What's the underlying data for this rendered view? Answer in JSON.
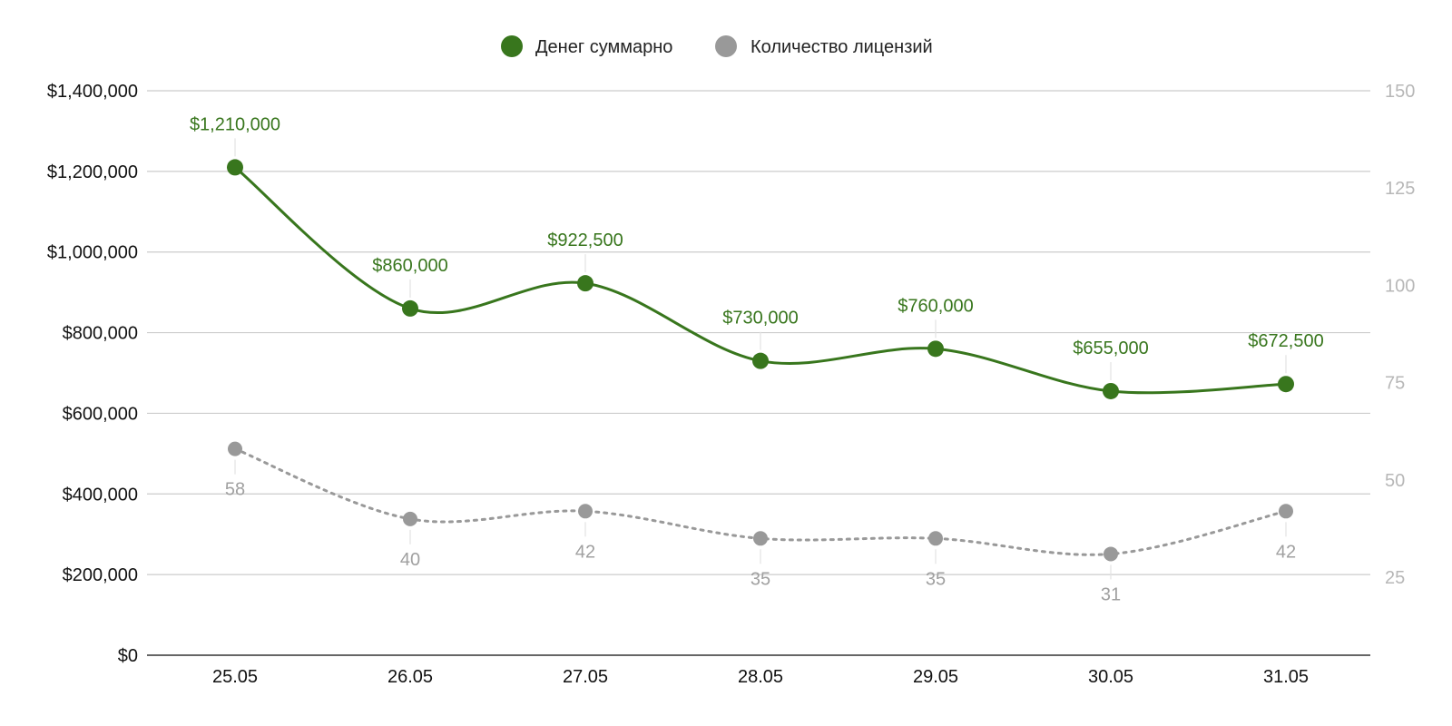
{
  "chart_data": {
    "type": "line",
    "categories": [
      "25.05",
      "26.05",
      "27.05",
      "28.05",
      "29.05",
      "30.05",
      "31.05"
    ],
    "series": [
      {
        "name": "Денег суммарно",
        "axis": "left",
        "color": "#38761d",
        "line_style": "solid",
        "values": [
          1210000,
          860000,
          922500,
          730000,
          760000,
          655000,
          672500
        ],
        "data_labels": [
          "$1,210,000",
          "$860,000",
          "$922,500",
          "$730,000",
          "$760,000",
          "$655,000",
          "$672,500"
        ],
        "label_position": "above"
      },
      {
        "name": "Количество лицензий",
        "axis": "right",
        "color": "#999999",
        "line_style": "dotted",
        "values": [
          58,
          40,
          42,
          35,
          35,
          31,
          42
        ],
        "data_labels": [
          "58",
          "40",
          "42",
          "35",
          "35",
          "31",
          "42"
        ],
        "label_position": "below"
      }
    ],
    "y_left": {
      "min": 0,
      "max": 1400000,
      "ticks": [
        0,
        200000,
        400000,
        600000,
        800000,
        1000000,
        1200000,
        1400000
      ],
      "tick_labels": [
        "$0",
        "$200,000",
        "$400,000",
        "$600,000",
        "$800,000",
        "$1,000,000",
        "$1,200,000",
        "$1,400,000"
      ]
    },
    "y_right": {
      "min": 5,
      "max": 150,
      "ticks": [
        25,
        50,
        75,
        100,
        125,
        150
      ],
      "tick_labels": [
        "25",
        "50",
        "75",
        "100",
        "125",
        "150"
      ],
      "color": "#b7b7b7"
    },
    "legend_position": "top-center",
    "grid": true,
    "title": "",
    "xlabel": "",
    "ylabel": ""
  }
}
